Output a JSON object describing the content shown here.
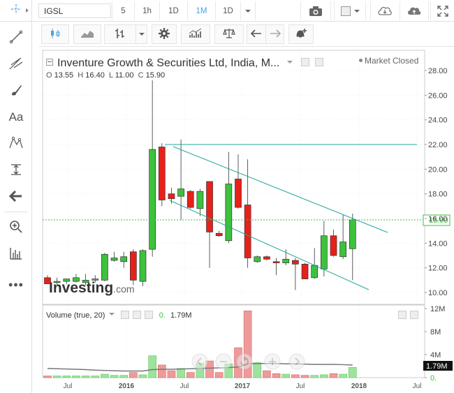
{
  "toolbar": {
    "symbol": "IGSL",
    "timeframes": [
      "5",
      "1h",
      "1D",
      "1M",
      "1D"
    ],
    "active_timeframe": "1M"
  },
  "header": {
    "title": "Inventure Growth & Securities Ltd, India, M...",
    "market_status": "Market Closed",
    "ohlc": {
      "o_label": "O",
      "o": "13.55",
      "h_label": "H",
      "h": "16.40",
      "l_label": "L",
      "l": "11.00",
      "c_label": "C",
      "c": "15.90"
    }
  },
  "volume_panel": {
    "label": "Volume (true, 20)",
    "value_prefix": "0.",
    "value": "1.79M",
    "axis_ticks": [
      "12M",
      "8M",
      "4M",
      "0."
    ],
    "current_value_tag": "1.79M"
  },
  "price_axis": {
    "ticks": [
      "28.00",
      "26.00",
      "24.00",
      "22.00",
      "20.00",
      "18.00",
      "16.00",
      "14.00",
      "12.00",
      "10.00"
    ],
    "current_price_tag": "15.90"
  },
  "watermark": "Investing.com",
  "x_axis_labels": [
    "Jul",
    "2016",
    "Jul",
    "2017",
    "Jul",
    "2018",
    "Jul"
  ],
  "colors": {
    "up": "#3cc23c",
    "down": "#e8201a",
    "trend": "#26a69a",
    "price_line": "#3cc23c",
    "accent": "#4aa3df"
  },
  "chart_data": {
    "type": "candlestick",
    "interval": "1M",
    "ylim": [
      9.0,
      29.0
    ],
    "candles": [
      {
        "o": 11.2,
        "h": 11.4,
        "l": 10.7,
        "c": 10.7
      },
      {
        "o": 10.8,
        "h": 11.2,
        "l": 10.6,
        "c": 10.9
      },
      {
        "o": 10.9,
        "h": 11.1,
        "l": 10.7,
        "c": 11.1
      },
      {
        "o": 10.9,
        "h": 11.5,
        "l": 10.8,
        "c": 11.2
      },
      {
        "o": 10.8,
        "h": 11.5,
        "l": 10.6,
        "c": 11.0
      },
      {
        "o": 11.0,
        "h": 11.4,
        "l": 10.8,
        "c": 11.1
      },
      {
        "o": 11.0,
        "h": 13.2,
        "l": 10.9,
        "c": 13.1
      },
      {
        "o": 12.6,
        "h": 13.3,
        "l": 12.5,
        "c": 12.8
      },
      {
        "o": 12.5,
        "h": 13.3,
        "l": 12.0,
        "c": 12.9
      },
      {
        "o": 13.3,
        "h": 13.5,
        "l": 10.6,
        "c": 11.0
      },
      {
        "o": 10.9,
        "h": 13.5,
        "l": 10.5,
        "c": 13.4
      },
      {
        "o": 13.5,
        "h": 27.2,
        "l": 12.9,
        "c": 21.6
      },
      {
        "o": 21.8,
        "h": 22.1,
        "l": 17.0,
        "c": 17.5
      },
      {
        "o": 18.0,
        "h": 18.5,
        "l": 17.2,
        "c": 17.6
      },
      {
        "o": 17.8,
        "h": 22.4,
        "l": 15.9,
        "c": 18.4
      },
      {
        "o": 18.2,
        "h": 18.3,
        "l": 16.8,
        "c": 16.9
      },
      {
        "o": 16.8,
        "h": 18.4,
        "l": 16.2,
        "c": 18.2
      },
      {
        "o": 19.0,
        "h": 19.0,
        "l": 12.0,
        "c": 14.9
      },
      {
        "o": 14.8,
        "h": 15.0,
        "l": 14.5,
        "c": 14.6
      },
      {
        "o": 14.2,
        "h": 21.4,
        "l": 14.0,
        "c": 18.8
      },
      {
        "o": 19.2,
        "h": 21.2,
        "l": 16.8,
        "c": 16.9
      },
      {
        "o": 17.1,
        "h": 20.8,
        "l": 12.0,
        "c": 12.8
      },
      {
        "o": 12.5,
        "h": 13.0,
        "l": 12.4,
        "c": 12.9
      },
      {
        "o": 12.9,
        "h": 13.0,
        "l": 12.6,
        "c": 12.7
      },
      {
        "o": 12.5,
        "h": 12.8,
        "l": 11.4,
        "c": 12.4
      },
      {
        "o": 12.4,
        "h": 13.5,
        "l": 12.2,
        "c": 12.7
      },
      {
        "o": 12.6,
        "h": 12.8,
        "l": 10.2,
        "c": 12.3
      },
      {
        "o": 12.3,
        "h": 12.4,
        "l": 11.1,
        "c": 11.1
      },
      {
        "o": 11.2,
        "h": 13.6,
        "l": 11.1,
        "c": 12.2
      },
      {
        "o": 11.9,
        "h": 15.8,
        "l": 11.3,
        "c": 14.6
      },
      {
        "o": 14.6,
        "h": 15.1,
        "l": 12.9,
        "c": 13.0
      },
      {
        "o": 12.9,
        "h": 16.3,
        "l": 12.7,
        "c": 14.1
      },
      {
        "o": 13.55,
        "h": 16.4,
        "l": 11.0,
        "c": 15.9
      }
    ],
    "volume": [
      0.3,
      0.3,
      0.3,
      0.3,
      0.3,
      0.3,
      0.6,
      0.4,
      0.4,
      0.9,
      0.5,
      3.8,
      2.2,
      1.2,
      1.6,
      0.9,
      2.5,
      2.9,
      0.9,
      2.4,
      5.2,
      11.6,
      2.6,
      1.2,
      0.7,
      0.6,
      0.5,
      0.4,
      0.4,
      0.5,
      0.7,
      0.6,
      1.79
    ],
    "volume_ma": [
      1.6,
      1.55,
      1.5,
      1.45,
      1.4,
      1.3,
      1.25,
      1.2,
      1.15,
      1.15,
      1.15,
      1.4,
      1.45,
      1.45,
      1.5,
      1.55,
      1.6,
      1.65,
      1.7,
      1.75,
      1.85,
      2.4,
      2.45,
      2.45,
      2.45,
      2.4,
      2.4,
      2.35,
      2.3,
      2.3,
      2.3,
      2.25,
      2.2
    ],
    "volume_ylim": [
      0,
      12
    ]
  }
}
